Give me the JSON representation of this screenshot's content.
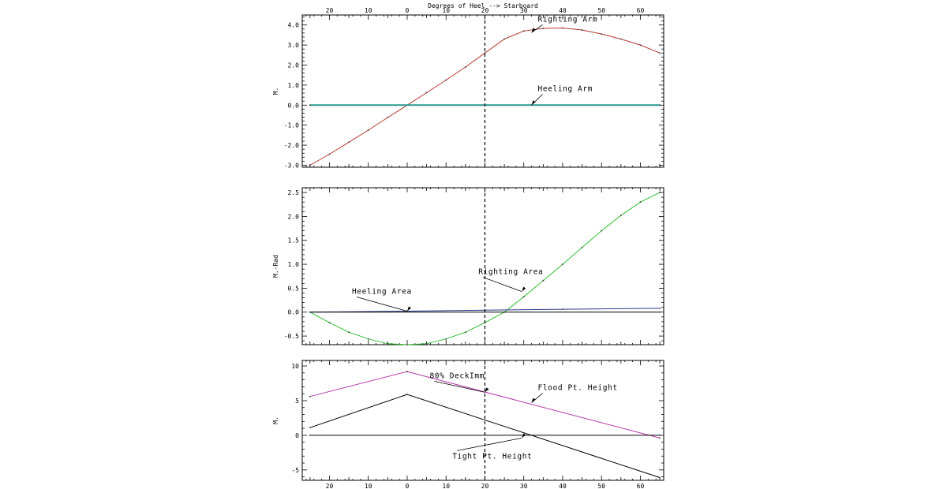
{
  "chart_data": [
    {
      "type": "line",
      "panel": "top",
      "xlabel_top": "Degrees of Heel --> Starboard",
      "ylabel": "M.",
      "xlim": [
        -27,
        66
      ],
      "ylim": [
        -3.1,
        4.5
      ],
      "x_tick_values": [
        -20,
        -10,
        0,
        10,
        20,
        30,
        40,
        50,
        60
      ],
      "x_tick_labels": [
        "20",
        "10",
        "0",
        "10",
        "20",
        "30",
        "40",
        "50",
        "60"
      ],
      "y_tick_values": [
        -3,
        -2,
        -1,
        0,
        1,
        2,
        3,
        4
      ],
      "y_tick_labels": [
        "-3.0",
        "-2.0",
        "-1.0",
        "0.0",
        "1.0",
        "2.0",
        "3.0",
        "4.0"
      ],
      "vline_x": 20,
      "series": [
        {
          "name": "Righting Arm",
          "color": "#b5362c",
          "x": [
            -25,
            -20,
            -15,
            -10,
            -5,
            0,
            5,
            10,
            15,
            20,
            25,
            30,
            35,
            40,
            45,
            50,
            55,
            60,
            65
          ],
          "values": [
            -3.0,
            -2.45,
            -1.85,
            -1.25,
            -0.62,
            0.0,
            0.62,
            1.25,
            1.9,
            2.6,
            3.3,
            3.7,
            3.83,
            3.85,
            3.75,
            3.55,
            3.3,
            3.0,
            2.6
          ]
        },
        {
          "name": "Heeling Arm",
          "color": "#2a9a8e",
          "x": [
            -25,
            65
          ],
          "values": [
            0.0,
            0.0
          ]
        }
      ],
      "annotations": [
        {
          "text": "Righting Arm",
          "series": "Righting Arm",
          "x": 32,
          "y": 3.62
        },
        {
          "text": "Heeling Arm",
          "series": "Heeling Arm",
          "x": 32,
          "y": 0.0
        }
      ]
    },
    {
      "type": "line",
      "panel": "middle",
      "ylabel": "M.-Rad",
      "xlim": [
        -27,
        66
      ],
      "ylim": [
        -0.68,
        2.6
      ],
      "x_tick_values": [
        -20,
        -10,
        0,
        10,
        20,
        30,
        40,
        50,
        60
      ],
      "y_tick_values": [
        -0.5,
        0,
        0.5,
        1,
        1.5,
        2,
        2.5
      ],
      "y_tick_labels": [
        "-0.5",
        "0.0",
        "0.5",
        "1.0",
        "1.5",
        "2.0",
        "2.5"
      ],
      "vline_x": 20,
      "series": [
        {
          "name": "Righting Area",
          "color": "#2fbf2f",
          "x": [
            -25,
            -20,
            -15,
            -10,
            -5,
            0,
            5,
            10,
            15,
            20,
            25,
            30,
            35,
            40,
            45,
            50,
            55,
            60,
            65
          ],
          "values": [
            0.0,
            -0.22,
            -0.42,
            -0.56,
            -0.66,
            -0.68,
            -0.66,
            -0.56,
            -0.42,
            -0.22,
            0.0,
            0.32,
            0.66,
            1.0,
            1.35,
            1.7,
            2.02,
            2.3,
            2.5
          ]
        },
        {
          "name": "Heeling Area",
          "color": "#2b3a8c",
          "x": [
            -25,
            0,
            20,
            40,
            65
          ],
          "values": [
            0.0,
            0.02,
            0.04,
            0.06,
            0.08
          ]
        },
        {
          "name": "zero",
          "color": "#000000",
          "x": [
            -25,
            65
          ],
          "values": [
            0.0,
            0.0
          ]
        }
      ],
      "annotations": [
        {
          "text": "Righting Area",
          "series": "Righting Area",
          "x": 29.5,
          "y": 0.43
        },
        {
          "text": "Heeling Area",
          "series": "Heeling Area",
          "x": 0,
          "y": 0.02
        }
      ]
    },
    {
      "type": "line",
      "panel": "bottom",
      "ylabel": "M.",
      "xlim": [
        -27,
        66
      ],
      "ylim": [
        -6.5,
        10.8
      ],
      "x_tick_values": [
        -20,
        -10,
        0,
        10,
        20,
        30,
        40,
        50,
        60
      ],
      "x_tick_labels": [
        "20",
        "10",
        "0",
        "10",
        "20",
        "30",
        "40",
        "50",
        "60"
      ],
      "y_tick_values": [
        -5,
        0,
        5,
        10
      ],
      "y_tick_labels": [
        "-5",
        "0",
        "5",
        "10"
      ],
      "vline_x": 20,
      "series": [
        {
          "name": "Flood Pt. Height",
          "color": "#b53aa8",
          "x": [
            -25,
            0,
            65
          ],
          "values": [
            5.6,
            9.2,
            -0.4
          ]
        },
        {
          "name": "Tight Pt. Height",
          "color": "#000000",
          "x": [
            -25,
            0,
            65
          ],
          "values": [
            1.1,
            5.9,
            -6.1
          ]
        },
        {
          "name": "zero",
          "color": "#000000",
          "x": [
            -25,
            65
          ],
          "values": [
            0.0,
            0.0
          ]
        }
      ],
      "annotations": [
        {
          "text": "Flood Pt. Height",
          "series": "Flood Pt. Height",
          "x": 32,
          "y": 4.7
        },
        {
          "text": "Tight Pt. Height",
          "series": "Tight Pt. Height",
          "x": 29.5,
          "y": -0.4
        },
        {
          "text": "80% DeckImm",
          "series": "Flood Pt. Height",
          "x": 20,
          "y": 6.2
        }
      ]
    }
  ]
}
